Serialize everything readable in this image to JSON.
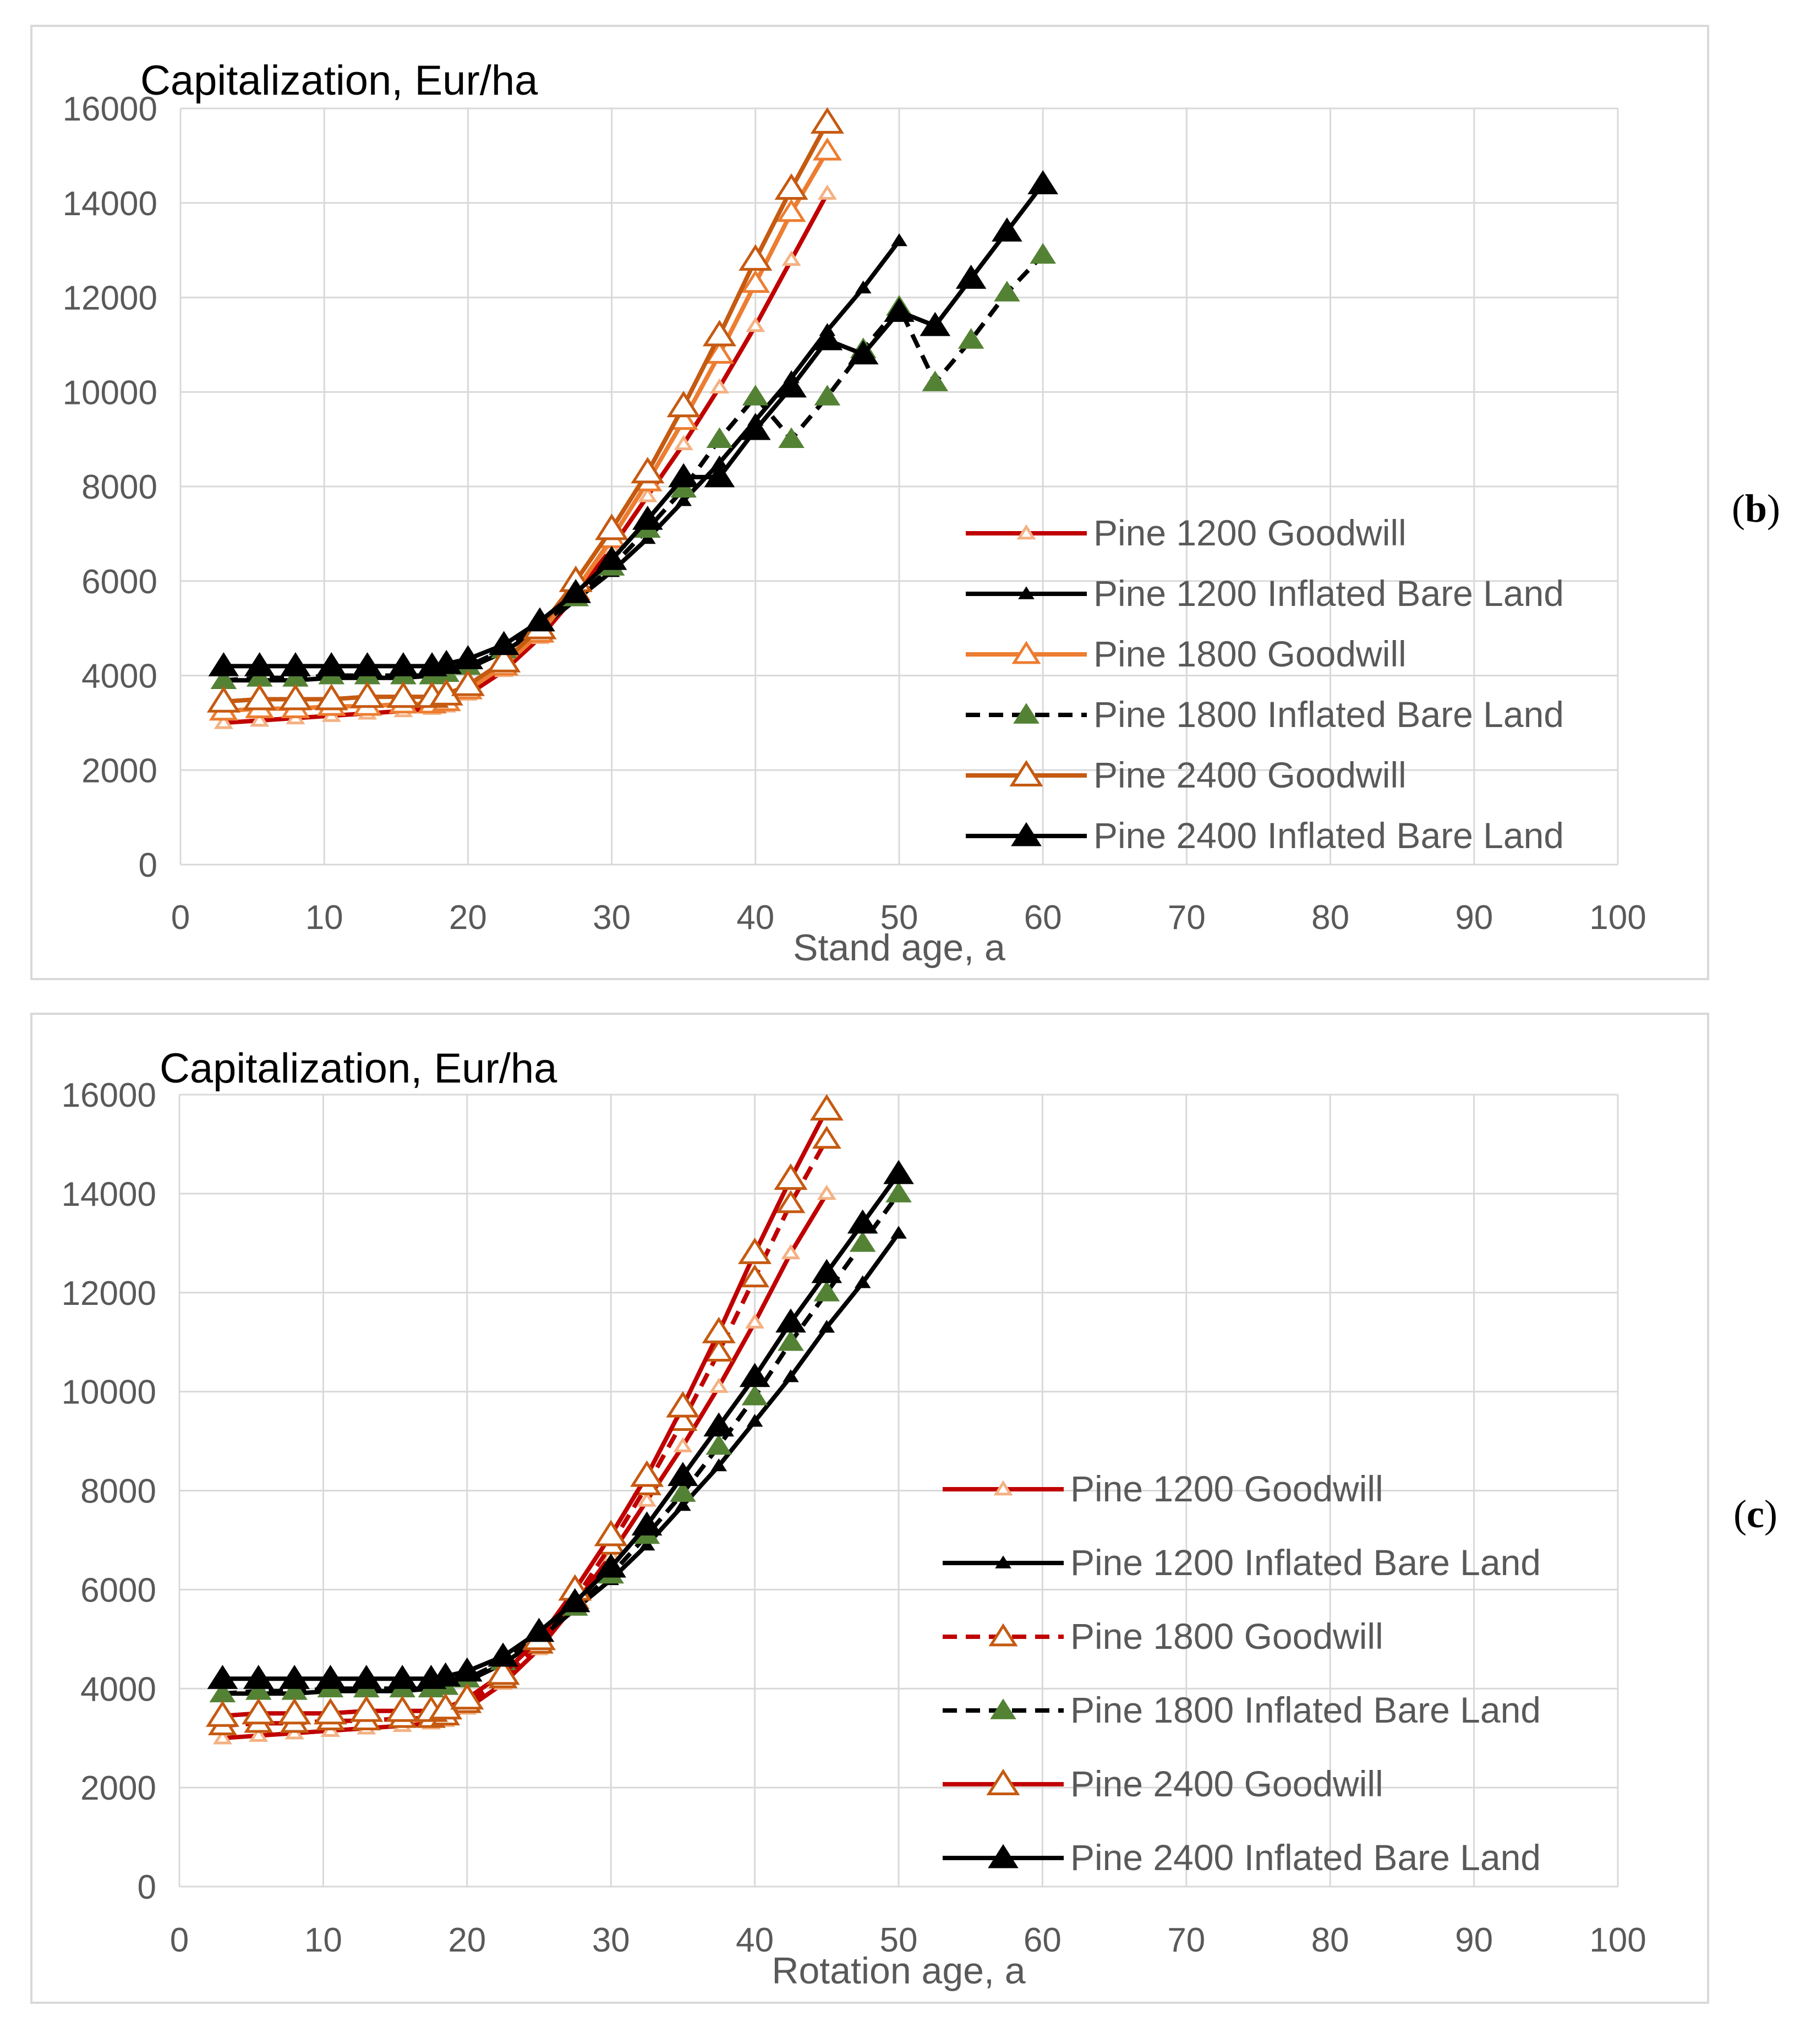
{
  "chart_data": [
    {
      "type": "line",
      "panel_label": "(b)",
      "title": "Capitalization,  Eur/ha",
      "xlabel": "Stand age, a",
      "ylabel": "",
      "xlim": [
        0,
        100
      ],
      "ylim": [
        0,
        16000
      ],
      "x_ticks": [
        0,
        10,
        20,
        30,
        40,
        50,
        60,
        70,
        80,
        90,
        100
      ],
      "y_ticks": [
        0,
        2000,
        4000,
        6000,
        8000,
        10000,
        12000,
        14000,
        16000
      ],
      "grid": true,
      "legend_position": "bottom-right",
      "series": [
        {
          "name": "Pine 1200 Goodwill",
          "color": "#c00000",
          "marker": "open-triangle-small",
          "marker_color": "#f4b183",
          "dash": "solid",
          "x": [
            3,
            5.5,
            8,
            10.5,
            13,
            15.5,
            17.5,
            18.5,
            20,
            22.5,
            25,
            27.5,
            30,
            32.5,
            35,
            37.5,
            40,
            42.5,
            45
          ],
          "y": [
            3000,
            3050,
            3100,
            3150,
            3200,
            3250,
            3300,
            3350,
            3600,
            4100,
            4800,
            5700,
            6700,
            7800,
            8900,
            10100,
            11400,
            12800,
            14200
          ]
        },
        {
          "name": "Pine 1200 Inflated Bare Land",
          "color": "#000000",
          "marker": "filled-triangle-small",
          "marker_color": "#000000",
          "dash": "solid",
          "x": [
            3,
            5.5,
            8,
            10.5,
            13,
            15.5,
            17.5,
            18.5,
            20,
            22.5,
            25,
            27.5,
            30,
            32.5,
            35,
            37.5,
            40,
            42.5,
            45,
            47.5,
            50
          ],
          "y": [
            3900,
            3900,
            3900,
            3950,
            3950,
            3950,
            4000,
            4050,
            4150,
            4500,
            5000,
            5600,
            6200,
            6900,
            7700,
            8500,
            9400,
            10300,
            11300,
            12200,
            13200
          ]
        },
        {
          "name": "Pine 1800 Goodwill",
          "color": "#ed7d31",
          "marker": "open-triangle",
          "marker_color": "#ed7d31",
          "dash": "solid",
          "x": [
            3,
            5.5,
            8,
            10.5,
            13,
            15.5,
            17.5,
            18.5,
            20,
            22.5,
            25,
            27.5,
            30,
            32.5,
            35,
            37.5,
            40,
            42.5,
            45
          ],
          "y": [
            3250,
            3300,
            3300,
            3350,
            3350,
            3400,
            3400,
            3450,
            3700,
            4200,
            4900,
            5800,
            6900,
            8100,
            9400,
            10800,
            12300,
            13800,
            15100
          ]
        },
        {
          "name": "Pine 1800 Inflated Bare Land",
          "color": "#000000",
          "marker": "filled-triangle",
          "marker_color": "#548235",
          "dash": "dashed",
          "x": [
            3,
            5.5,
            8,
            10.5,
            13,
            15.5,
            17.5,
            18.5,
            20,
            22.5,
            25,
            27.5,
            30,
            32.5,
            35,
            37.5,
            40,
            42.5,
            45,
            47.5,
            50,
            52.5,
            55,
            57.5,
            60
          ],
          "y": [
            3900,
            3950,
            3950,
            4000,
            4000,
            4000,
            4000,
            4050,
            4200,
            4550,
            5050,
            5650,
            6300,
            7100,
            7950,
            9000,
            9900,
            9000,
            9900,
            10900,
            11800,
            10200,
            11100,
            12100,
            12900
          ]
        },
        {
          "name": "Pine 2400 Goodwill",
          "color": "#c55a11",
          "marker": "open-triangle-large",
          "marker_color": "#c55a11",
          "dash": "solid",
          "x": [
            3,
            5.5,
            8,
            10.5,
            13,
            15.5,
            17.5,
            18.5,
            20,
            22.5,
            25,
            27.5,
            30,
            32.5,
            35,
            37.5,
            40,
            42.5,
            45
          ],
          "y": [
            3450,
            3500,
            3500,
            3500,
            3550,
            3550,
            3550,
            3600,
            3800,
            4300,
            5000,
            6000,
            7100,
            8300,
            9700,
            11200,
            12800,
            14300,
            15700
          ]
        },
        {
          "name": "Pine 2400 Inflated Bare Land",
          "color": "#000000",
          "marker": "filled-triangle-large",
          "marker_color": "#000000",
          "dash": "solid",
          "x": [
            3,
            5.5,
            8,
            10.5,
            13,
            15.5,
            17.5,
            18.5,
            20,
            22.5,
            25,
            27.5,
            30,
            32.5,
            35,
            37.5,
            40,
            42.5,
            45,
            47.5,
            50,
            52.5,
            55,
            57.5,
            60
          ],
          "y": [
            4200,
            4200,
            4200,
            4200,
            4200,
            4200,
            4200,
            4250,
            4350,
            4650,
            5150,
            5750,
            6450,
            7300,
            8200,
            8200,
            9200,
            10100,
            11100,
            10800,
            11700,
            11400,
            12400,
            13400,
            14400
          ]
        }
      ]
    },
    {
      "type": "line",
      "panel_label": "(c)",
      "title": "Capitalization,  Eur/ha",
      "xlabel": "Rotation age, a",
      "ylabel": "",
      "xlim": [
        0,
        100
      ],
      "ylim": [
        0,
        16000
      ],
      "x_ticks": [
        0,
        10,
        20,
        30,
        40,
        50,
        60,
        70,
        80,
        90,
        100
      ],
      "y_ticks": [
        0,
        2000,
        4000,
        6000,
        8000,
        10000,
        12000,
        14000,
        16000
      ],
      "grid": true,
      "legend_position": "bottom-right",
      "series": [
        {
          "name": "Pine 1200 Goodwill",
          "color": "#c00000",
          "marker": "open-triangle-small",
          "marker_color": "#f4b183",
          "dash": "solid",
          "x": [
            3,
            5.5,
            8,
            10.5,
            13,
            15.5,
            17.5,
            18.5,
            20,
            22.5,
            25,
            27.5,
            30,
            32.5,
            35,
            37.5,
            40,
            42.5,
            45
          ],
          "y": [
            3000,
            3050,
            3100,
            3150,
            3200,
            3250,
            3300,
            3350,
            3600,
            4100,
            4800,
            5700,
            6700,
            7800,
            8900,
            10100,
            11400,
            12800,
            14000
          ]
        },
        {
          "name": "Pine 1200 Inflated Bare Land",
          "color": "#000000",
          "marker": "filled-triangle-small",
          "marker_color": "#000000",
          "dash": "solid",
          "x": [
            3,
            5.5,
            8,
            10.5,
            13,
            15.5,
            17.5,
            18.5,
            20,
            22.5,
            25,
            27.5,
            30,
            32.5,
            35,
            37.5,
            40,
            42.5,
            45,
            47.5,
            50
          ],
          "y": [
            3900,
            3900,
            3900,
            3950,
            3950,
            3950,
            4000,
            4050,
            4150,
            4500,
            5000,
            5600,
            6200,
            6900,
            7700,
            8500,
            9400,
            10300,
            11300,
            12200,
            13200
          ]
        },
        {
          "name": "Pine 1800 Goodwill",
          "color": "#c00000",
          "marker": "open-triangle",
          "marker_color": "#c55a11",
          "dash": "dashed",
          "x": [
            3,
            5.5,
            8,
            10.5,
            13,
            15.5,
            17.5,
            18.5,
            20,
            22.5,
            25,
            27.5,
            30,
            32.5,
            35,
            37.5,
            40,
            42.5,
            45
          ],
          "y": [
            3250,
            3300,
            3300,
            3350,
            3350,
            3400,
            3400,
            3450,
            3700,
            4200,
            4900,
            5800,
            6900,
            8100,
            9400,
            10800,
            12300,
            13800,
            15100
          ]
        },
        {
          "name": "Pine 1800 Inflated Bare Land",
          "color": "#000000",
          "marker": "filled-triangle",
          "marker_color": "#548235",
          "dash": "dashed",
          "x": [
            3,
            5.5,
            8,
            10.5,
            13,
            15.5,
            17.5,
            18.5,
            20,
            22.5,
            25,
            27.5,
            30,
            32.5,
            35,
            37.5,
            40,
            42.5,
            45,
            47.5,
            50
          ],
          "y": [
            3900,
            3950,
            3950,
            4000,
            4000,
            4000,
            4000,
            4050,
            4200,
            4550,
            5050,
            5650,
            6300,
            7100,
            7950,
            8900,
            9900,
            11000,
            12000,
            13000,
            14000
          ]
        },
        {
          "name": "Pine 2400 Goodwill",
          "color": "#c00000",
          "marker": "open-triangle-large",
          "marker_color": "#c55a11",
          "dash": "solid",
          "x": [
            3,
            5.5,
            8,
            10.5,
            13,
            15.5,
            17.5,
            18.5,
            20,
            22.5,
            25,
            27.5,
            30,
            32.5,
            35,
            37.5,
            40,
            42.5,
            45
          ],
          "y": [
            3450,
            3500,
            3500,
            3500,
            3550,
            3550,
            3550,
            3600,
            3800,
            4300,
            5000,
            6000,
            7100,
            8300,
            9700,
            11200,
            12800,
            14300,
            15700
          ]
        },
        {
          "name": "Pine 2400 Inflated Bare Land",
          "color": "#000000",
          "marker": "filled-triangle-large",
          "marker_color": "#000000",
          "dash": "solid",
          "x": [
            3,
            5.5,
            8,
            10.5,
            13,
            15.5,
            17.5,
            18.5,
            20,
            22.5,
            25,
            27.5,
            30,
            32.5,
            35,
            37.5,
            40,
            42.5,
            45,
            47.5,
            50
          ],
          "y": [
            4200,
            4200,
            4200,
            4200,
            4200,
            4200,
            4200,
            4250,
            4350,
            4650,
            5150,
            5750,
            6450,
            7300,
            8300,
            9300,
            10300,
            11400,
            12400,
            13400,
            14400
          ]
        }
      ]
    }
  ]
}
